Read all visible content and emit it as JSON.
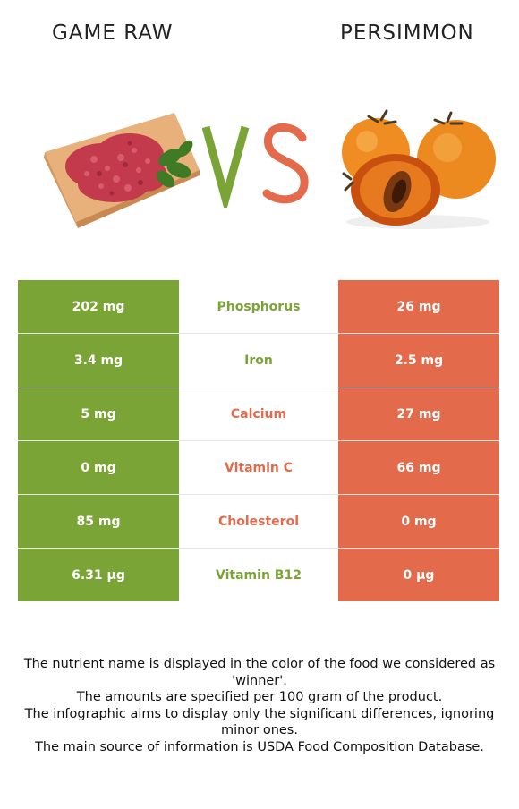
{
  "header": {
    "left_title": "GAME RAW",
    "right_title": "PERSIMMON",
    "vs_label": "VS"
  },
  "colors": {
    "left": "#7aa436",
    "right": "#e36a4a"
  },
  "rows": [
    {
      "nutrient": "Phosphorus",
      "left": "202 mg",
      "right": "26 mg",
      "winner": "left"
    },
    {
      "nutrient": "Iron",
      "left": "3.4 mg",
      "right": "2.5 mg",
      "winner": "left"
    },
    {
      "nutrient": "Calcium",
      "left": "5 mg",
      "right": "27 mg",
      "winner": "right"
    },
    {
      "nutrient": "Vitamin C",
      "left": "0 mg",
      "right": "66 mg",
      "winner": "right"
    },
    {
      "nutrient": "Cholesterol",
      "left": "85 mg",
      "right": "0 mg",
      "winner": "right"
    },
    {
      "nutrient": "Vitamin B12",
      "left": "6.31 µg",
      "right": "0 µg",
      "winner": "left"
    }
  ],
  "footnotes": [
    "The nutrient name is displayed in the color of the food we considered as 'winner'.",
    "The amounts are specified per 100 gram of the product.",
    "The infographic aims to display only the significant differences, ignoring minor ones.",
    "The main source of information is USDA Food Composition Database."
  ]
}
